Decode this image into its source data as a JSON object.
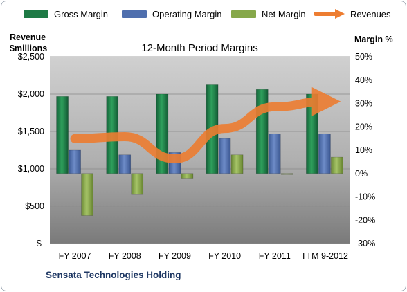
{
  "legend": {
    "gross": "Gross Margin",
    "operating": "Operating Margin",
    "net": "Net Margin",
    "revenues": "Revenues"
  },
  "left_axis_title_1": "Revenue",
  "left_axis_title_2": "$millions",
  "right_axis_title": "Margin %",
  "footer": "Sensata Technologies Holding",
  "colors": {
    "gross": "#1e7a45",
    "operating": "#4f6fae",
    "net": "#86a84a",
    "revenues": "#ed7d31",
    "plot_top": "#c9c9c9",
    "plot_bottom": "#7d7d7d"
  },
  "chart_data": {
    "type": "bar",
    "title": "12-Month Period Margins",
    "categories": [
      "FY 2007",
      "FY 2008",
      "FY 2009",
      "FY 2010",
      "FY 2011",
      "TTM 9-2012"
    ],
    "left_axis": {
      "label": "Revenue $millions",
      "ylim": [
        0,
        2500
      ],
      "ticks": [
        0,
        500,
        1000,
        1500,
        2000,
        2500
      ],
      "tick_labels": [
        "$-",
        "$500",
        "$1,000",
        "$1,500",
        "$2,000",
        "$2,500"
      ]
    },
    "right_axis": {
      "label": "Margin %",
      "ylim": [
        -30,
        50
      ],
      "ticks": [
        -30,
        -20,
        -10,
        0,
        10,
        20,
        30,
        40,
        50
      ],
      "tick_labels": [
        "-30%",
        "-20%",
        "-10%",
        "0%",
        "10%",
        "20%",
        "30%",
        "40%",
        "50%"
      ]
    },
    "series": [
      {
        "name": "Gross Margin",
        "type": "bar",
        "axis": "right",
        "values": [
          33,
          33,
          34,
          38,
          36,
          34
        ]
      },
      {
        "name": "Operating Margin",
        "type": "bar",
        "axis": "right",
        "values": [
          10,
          8,
          9,
          15,
          17,
          17
        ]
      },
      {
        "name": "Net Margin",
        "type": "bar",
        "axis": "right",
        "values": [
          -18,
          -9,
          -2,
          8,
          0,
          7
        ]
      },
      {
        "name": "Revenues",
        "type": "line",
        "axis": "left",
        "values": [
          1405,
          1430,
          1135,
          1540,
          1830,
          1900
        ]
      }
    ],
    "grid": "horizontal",
    "legend_position": "top"
  }
}
